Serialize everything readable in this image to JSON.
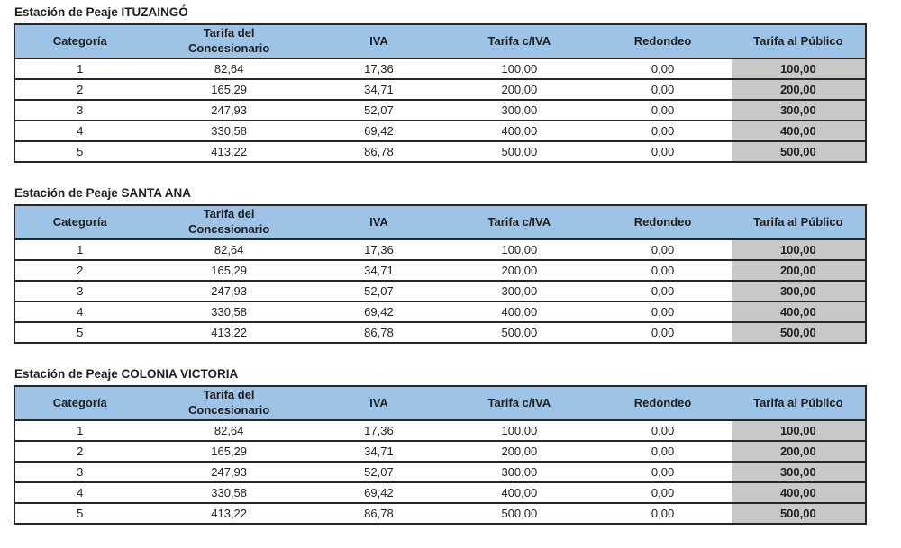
{
  "colors": {
    "header_bg": "#9dc3e6",
    "public_col_bg": "#c8c8c8",
    "border": "#262626",
    "text": "#1f1f1f"
  },
  "columns": [
    {
      "label": "Categoría"
    },
    {
      "label": "Tarifa del\nConcesionario"
    },
    {
      "label": "IVA"
    },
    {
      "label": "Tarifa c/IVA"
    },
    {
      "label": "Redondeo"
    },
    {
      "label": "Tarifa al Público"
    }
  ],
  "tables": [
    {
      "title": "Estación de Peaje ITUZAINGÓ",
      "rows": [
        [
          "1",
          "82,64",
          "17,36",
          "100,00",
          "0,00",
          "100,00"
        ],
        [
          "2",
          "165,29",
          "34,71",
          "200,00",
          "0,00",
          "200,00"
        ],
        [
          "3",
          "247,93",
          "52,07",
          "300,00",
          "0,00",
          "300,00"
        ],
        [
          "4",
          "330,58",
          "69,42",
          "400,00",
          "0,00",
          "400,00"
        ],
        [
          "5",
          "413,22",
          "86,78",
          "500,00",
          "0,00",
          "500,00"
        ]
      ]
    },
    {
      "title": "Estación de Peaje SANTA ANA",
      "rows": [
        [
          "1",
          "82,64",
          "17,36",
          "100,00",
          "0,00",
          "100,00"
        ],
        [
          "2",
          "165,29",
          "34,71",
          "200,00",
          "0,00",
          "200,00"
        ],
        [
          "3",
          "247,93",
          "52,07",
          "300,00",
          "0,00",
          "300,00"
        ],
        [
          "4",
          "330,58",
          "69,42",
          "400,00",
          "0,00",
          "400,00"
        ],
        [
          "5",
          "413,22",
          "86,78",
          "500,00",
          "0,00",
          "500,00"
        ]
      ]
    },
    {
      "title": "Estación de Peaje COLONIA VICTORIA",
      "rows": [
        [
          "1",
          "82,64",
          "17,36",
          "100,00",
          "0,00",
          "100,00"
        ],
        [
          "2",
          "165,29",
          "34,71",
          "200,00",
          "0,00",
          "200,00"
        ],
        [
          "3",
          "247,93",
          "52,07",
          "300,00",
          "0,00",
          "300,00"
        ],
        [
          "4",
          "330,58",
          "69,42",
          "400,00",
          "0,00",
          "400,00"
        ],
        [
          "5",
          "413,22",
          "86,78",
          "500,00",
          "0,00",
          "500,00"
        ]
      ]
    }
  ]
}
